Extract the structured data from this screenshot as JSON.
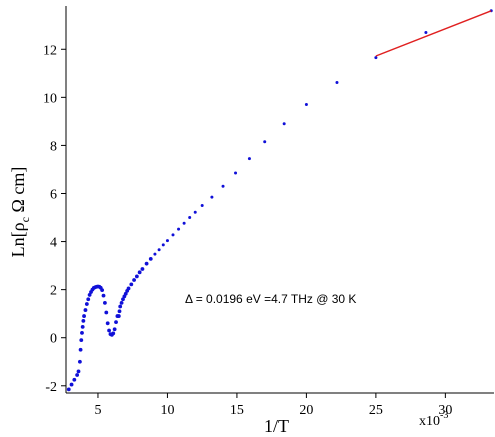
{
  "chart_data": {
    "type": "scatter",
    "x_scale_label": "x10",
    "x_scale_exponent": "-3",
    "xlabel": "1/T",
    "ylabel": {
      "prefix": "Ln[",
      "rho": "ρ",
      "sub": "c",
      "rest": " Ω cm]"
    },
    "xlim": [
      2.7,
      33.5
    ],
    "ylim": [
      -2.3,
      13.8
    ],
    "x_ticks": [
      5,
      10,
      15,
      20,
      25,
      30
    ],
    "x_tick_labels": [
      "5",
      "10",
      "15",
      "20",
      "25",
      "30"
    ],
    "y_ticks": [
      -2,
      0,
      2,
      4,
      6,
      8,
      10,
      12
    ],
    "y_tick_labels": [
      "-2",
      "0",
      "2",
      "4",
      "6",
      "8",
      "10",
      "12"
    ],
    "annotation": "Δ = 0.0196 eV =4.7 THz @ 30 K",
    "colors": {
      "data": "#1010d8",
      "fit": "#e02020",
      "axes": "#000000"
    },
    "series": [
      {
        "style": "markers",
        "x": [
          2.9,
          3.1,
          3.3,
          3.5,
          3.6,
          3.7,
          3.75,
          3.8,
          3.85,
          3.9,
          3.95,
          4.0,
          4.1,
          4.2,
          4.3,
          4.4,
          4.5,
          4.6,
          4.7,
          4.8,
          4.9,
          5.0,
          5.1,
          5.2,
          5.3,
          5.4,
          5.5,
          5.6,
          5.7,
          5.8,
          5.9,
          6.0,
          6.1,
          6.2,
          6.3,
          6.4,
          6.5,
          6.55,
          6.6,
          6.7,
          6.8,
          6.9,
          7.0,
          7.1,
          7.2,
          7.4,
          7.6,
          7.8,
          8.0,
          8.2,
          8.5,
          8.8,
          9.1,
          9.4,
          9.7,
          10.0,
          10.4,
          10.8,
          11.2,
          11.6,
          12.0,
          12.5,
          13.2,
          14.0,
          14.9,
          15.9,
          17.0,
          18.4,
          20.0,
          22.2,
          25.0,
          28.6,
          33.3
        ],
        "y": [
          -2.15,
          -1.95,
          -1.75,
          -1.55,
          -1.4,
          -1.0,
          -0.5,
          -0.1,
          0.2,
          0.45,
          0.7,
          0.9,
          1.15,
          1.4,
          1.6,
          1.78,
          1.9,
          2.0,
          2.07,
          2.1,
          2.12,
          2.13,
          2.12,
          2.08,
          1.98,
          1.75,
          1.45,
          1.05,
          0.6,
          0.3,
          0.15,
          0.12,
          0.18,
          0.35,
          0.65,
          0.9,
          0.9,
          1.1,
          1.3,
          1.45,
          1.6,
          1.72,
          1.83,
          1.95,
          2.05,
          2.22,
          2.4,
          2.55,
          2.72,
          2.86,
          3.08,
          3.28,
          3.48,
          3.66,
          3.86,
          4.04,
          4.28,
          4.52,
          4.76,
          5.0,
          5.22,
          5.5,
          5.85,
          6.3,
          6.85,
          7.45,
          8.15,
          8.9,
          9.7,
          10.62,
          11.65,
          12.7,
          13.6
        ]
      },
      {
        "style": "line",
        "x": [
          25.0,
          33.3
        ],
        "y": [
          11.72,
          13.6
        ]
      }
    ]
  }
}
